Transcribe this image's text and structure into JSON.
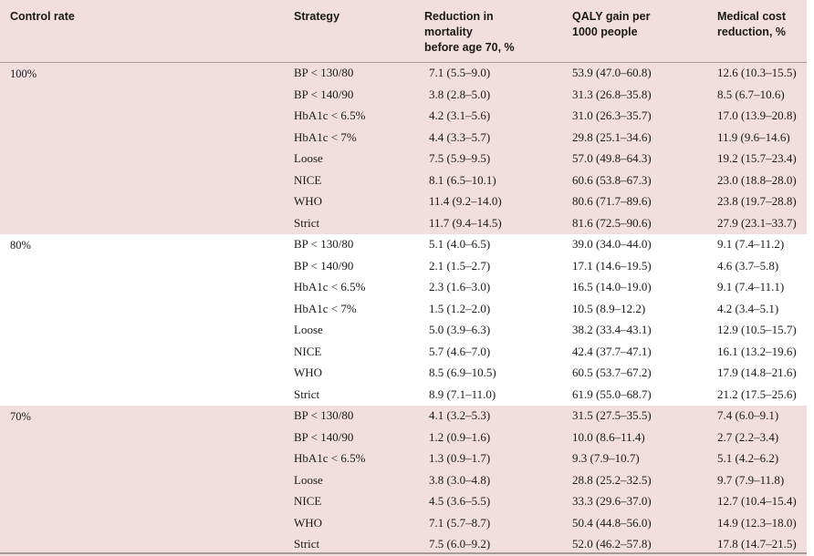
{
  "headers": {
    "control_rate": "Control rate",
    "strategy": "Strategy",
    "mortality": [
      "Reduction in",
      "mortality",
      "before age 70, %"
    ],
    "qaly": [
      "QALY gain per",
      "1000 people"
    ],
    "cost": [
      "Medical cost",
      "reduction, %"
    ]
  },
  "groups": [
    {
      "label": "100%",
      "rows": [
        {
          "strategy": "BP < 130/80",
          "mortality": "7.1 (5.5–9.0)",
          "qaly": "53.9 (47.0–60.8)",
          "cost": "12.6 (10.3–15.5)"
        },
        {
          "strategy": "BP < 140/90",
          "mortality": "3.8 (2.8–5.0)",
          "qaly": "31.3 (26.8–35.8)",
          "cost": "8.5 (6.7–10.6)"
        },
        {
          "strategy": "HbA1c < 6.5%",
          "mortality": "4.2 (3.1–5.6)",
          "qaly": "31.0 (26.3–35.7)",
          "cost": "17.0 (13.9–20.8)"
        },
        {
          "strategy": "HbA1c < 7%",
          "mortality": "4.4 (3.3–5.7)",
          "qaly": "29.8 (25.1–34.6)",
          "cost": "11.9 (9.6–14.6)"
        },
        {
          "strategy": "Loose",
          "mortality": "7.5 (5.9–9.5)",
          "qaly": "57.0 (49.8–64.3)",
          "cost": "19.2 (15.7–23.4)"
        },
        {
          "strategy": "NICE",
          "mortality": "8.1 (6.5–10.1)",
          "qaly": "60.6 (53.8–67.3)",
          "cost": "23.0 (18.8–28.0)"
        },
        {
          "strategy": "WHO",
          "mortality": "11.4 (9.2–14.0)",
          "qaly": "80.6 (71.7–89.6)",
          "cost": "23.8 (19.7–28.8)"
        },
        {
          "strategy": "Strict",
          "mortality": "11.7 (9.4–14.5)",
          "qaly": "81.6 (72.5–90.6)",
          "cost": "27.9 (23.1–33.7)"
        }
      ]
    },
    {
      "label": "80%",
      "rows": [
        {
          "strategy": "BP < 130/80",
          "mortality": "5.1 (4.0–6.5)",
          "qaly": "39.0 (34.0–44.0)",
          "cost": "9.1 (7.4–11.2)"
        },
        {
          "strategy": "BP < 140/90",
          "mortality": "2.1 (1.5–2.7)",
          "qaly": "17.1 (14.6–19.5)",
          "cost": "4.6 (3.7–5.8)"
        },
        {
          "strategy": "HbA1c < 6.5%",
          "mortality": "2.3 (1.6–3.0)",
          "qaly": "16.5 (14.0–19.0)",
          "cost": "9.1 (7.4–11.1)"
        },
        {
          "strategy": "HbA1c < 7%",
          "mortality": "1.5 (1.2–2.0)",
          "qaly": "10.5 (8.9–12.2)",
          "cost": "4.2 (3.4–5.1)"
        },
        {
          "strategy": "Loose",
          "mortality": "5.0 (3.9–6.3)",
          "qaly": "38.2 (33.4–43.1)",
          "cost": "12.9 (10.5–15.7)"
        },
        {
          "strategy": "NICE",
          "mortality": "5.7 (4.6–7.0)",
          "qaly": "42.4 (37.7–47.1)",
          "cost": "16.1 (13.2–19.6)"
        },
        {
          "strategy": "WHO",
          "mortality": "8.5 (6.9–10.5)",
          "qaly": "60.5 (53.7–67.2)",
          "cost": "17.9 (14.8–21.6)"
        },
        {
          "strategy": "Strict",
          "mortality": "8.9 (7.1–11.0)",
          "qaly": "61.9 (55.0–68.7)",
          "cost": "21.2 (17.5–25.6)"
        }
      ]
    },
    {
      "label": "70%",
      "rows": [
        {
          "strategy": "BP < 130/80",
          "mortality": "4.1 (3.2–5.3)",
          "qaly": "31.5 (27.5–35.5)",
          "cost": "7.4 (6.0–9.1)"
        },
        {
          "strategy": "BP < 140/90",
          "mortality": "1.2 (0.9–1.6)",
          "qaly": "10.0 (8.6–11.4)",
          "cost": "2.7 (2.2–3.4)"
        },
        {
          "strategy": "HbA1c < 6.5%",
          "mortality": "1.3 (0.9–1.7)",
          "qaly": "9.3 (7.9–10.7)",
          "cost": "5.1 (4.2–6.2)"
        },
        {
          "strategy": "Loose",
          "mortality": "3.8 (3.0–4.8)",
          "qaly": "28.8 (25.2–32.5)",
          "cost": "9.7 (7.9–11.8)"
        },
        {
          "strategy": "NICE",
          "mortality": "4.5 (3.6–5.5)",
          "qaly": "33.3 (29.6–37.0)",
          "cost": "12.7 (10.4–15.4)"
        },
        {
          "strategy": "WHO",
          "mortality": "7.1 (5.7–8.7)",
          "qaly": "50.4 (44.8–56.0)",
          "cost": "14.9 (12.3–18.0)"
        },
        {
          "strategy": "Strict",
          "mortality": "7.5 (6.0–9.2)",
          "qaly": "52.0 (46.2–57.8)",
          "cost": "17.8 (14.7–21.5)"
        }
      ]
    }
  ]
}
